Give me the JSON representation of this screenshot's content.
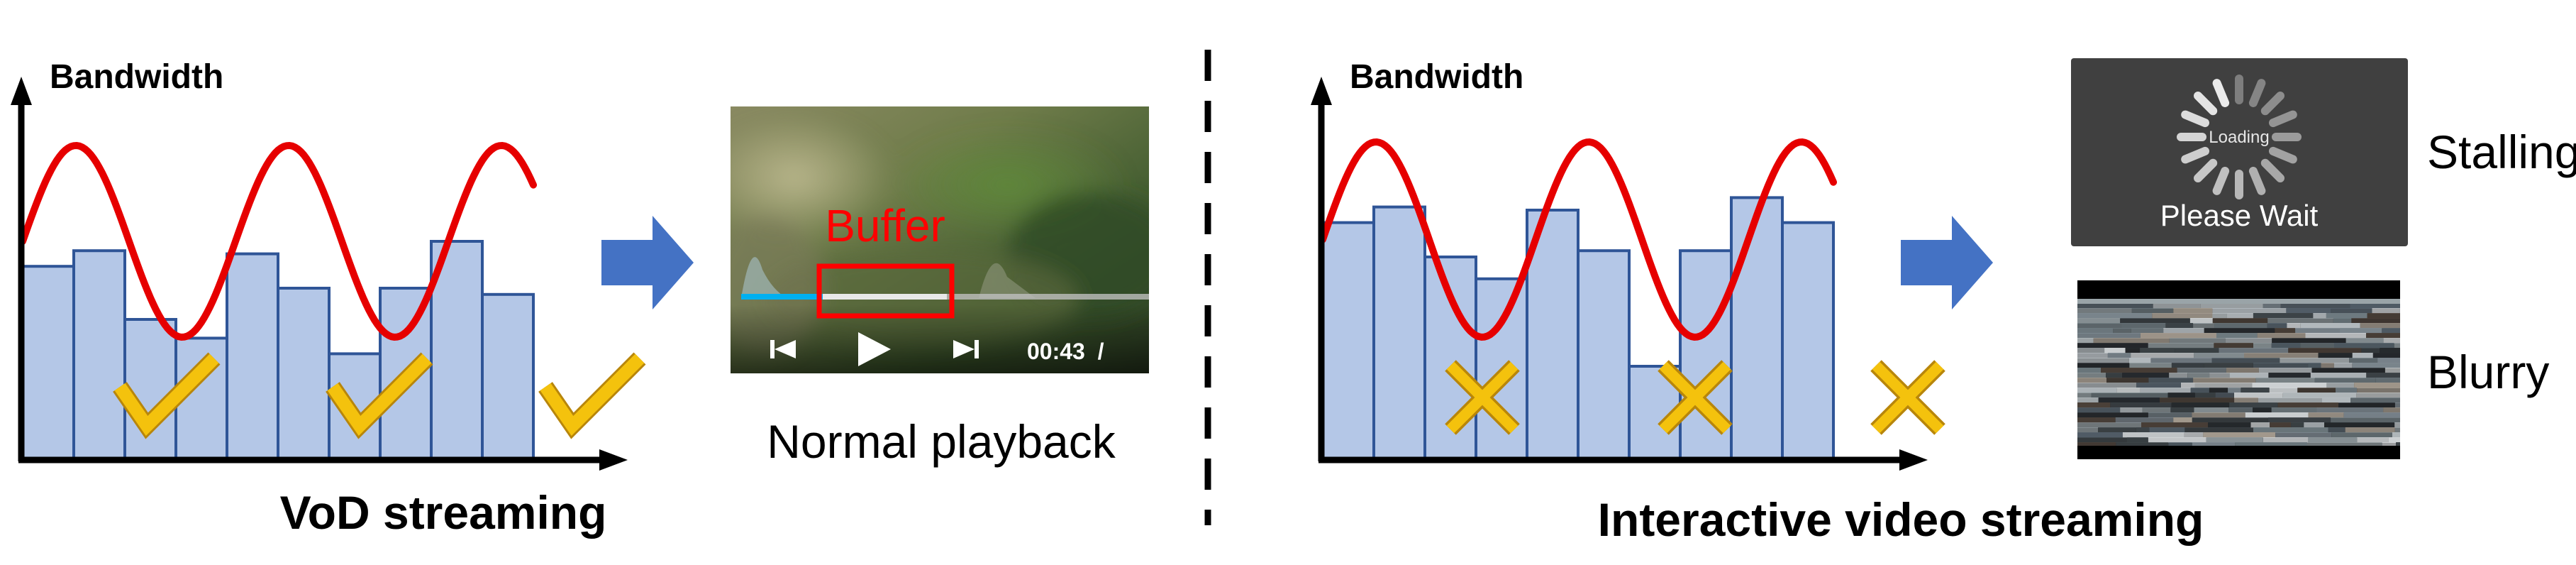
{
  "colors": {
    "bar_fill": "#b4c7e7",
    "bar_stroke": "#2f5597",
    "curve": "#e60000",
    "check": "#f4c20d",
    "arrow": "#4472c4",
    "dark_panel": "#404040",
    "progress": "#00b0f0"
  },
  "left_panel": {
    "axis_label": "Bandwidth",
    "caption": "VoD streaming",
    "bars": [
      0.62,
      0.67,
      0.45,
      0.39,
      0.66,
      0.55,
      0.34,
      0.55,
      0.7,
      0.53
    ],
    "marker_icon": "checkmark-icon",
    "player": {
      "buffer_label": "Buffer",
      "time": "00:43  /",
      "controls": [
        "skip-back-icon",
        "play-icon",
        "skip-forward-icon"
      ],
      "caption": "Normal playback"
    }
  },
  "right_panel": {
    "axis_label": "Bandwidth",
    "caption": "Interactive video streaming",
    "bars": [
      0.76,
      0.81,
      0.65,
      0.58,
      0.8,
      0.67,
      0.3,
      0.67,
      0.84,
      0.76
    ],
    "marker_icon": "cross-icon",
    "stall": {
      "spinner_text": "Loading",
      "wait_text": "Please Wait",
      "label": "Stalling"
    },
    "blur": {
      "label": "Blurry"
    }
  }
}
